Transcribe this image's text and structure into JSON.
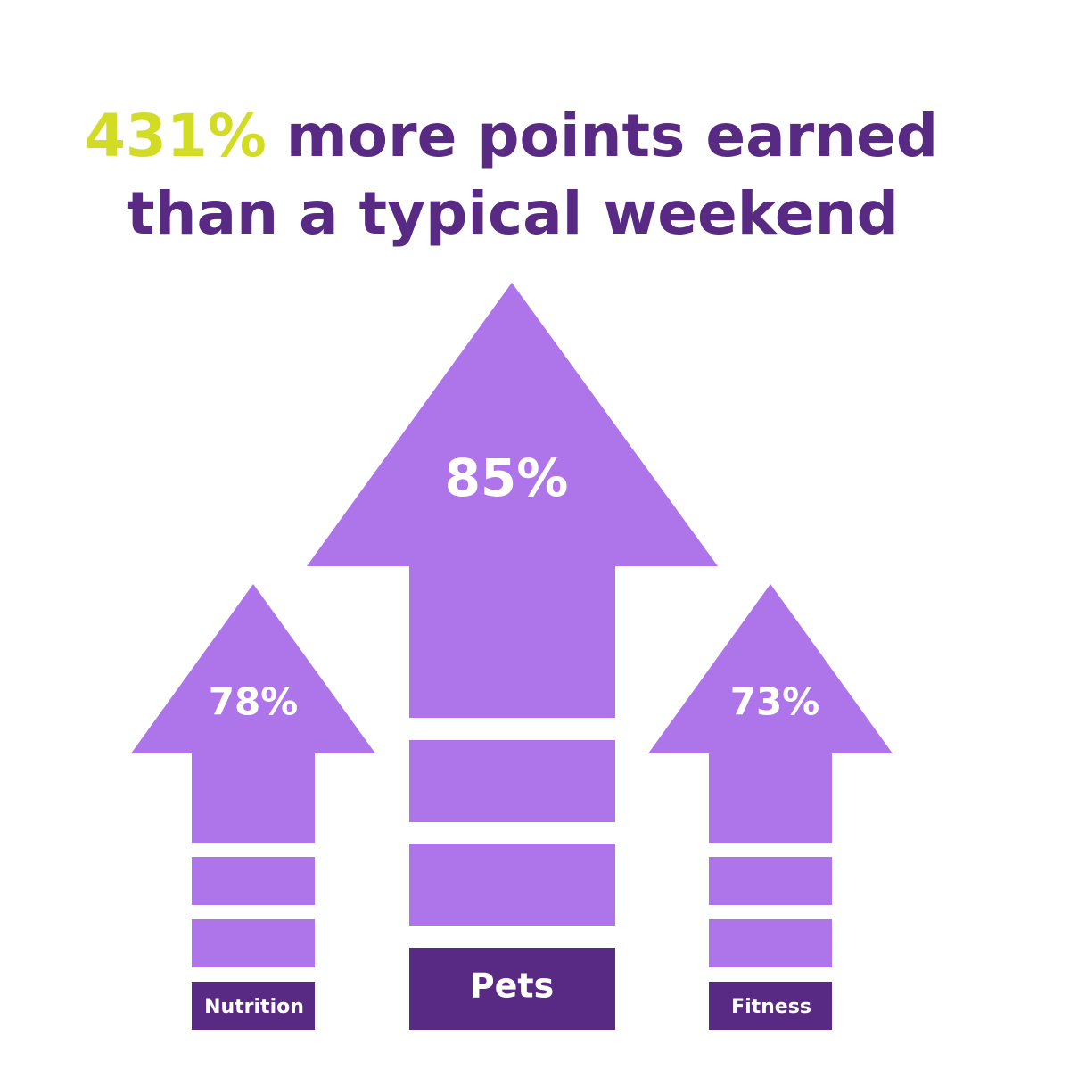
{
  "header": {
    "highlight": "431%",
    "title_rest": "more points earned",
    "title_line2": "than a typical weekend"
  },
  "arrows": [
    {
      "label": "Nutrition",
      "value": "78%"
    },
    {
      "label": "Pets",
      "value": "85%"
    },
    {
      "label": "Fitness",
      "value": "73%"
    }
  ]
}
